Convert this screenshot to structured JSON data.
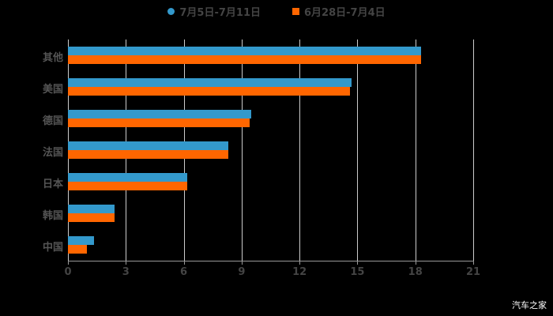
{
  "chart_data": {
    "type": "bar",
    "orientation": "horizontal",
    "title": "",
    "categories": [
      "其他",
      "美国",
      "德国",
      "法国",
      "日本",
      "韩国",
      "中国"
    ],
    "series": [
      {
        "name": "7月5日-7月11日",
        "color": "#3399CC",
        "marker": "circle",
        "values": [
          18.3,
          14.7,
          9.5,
          8.3,
          6.2,
          2.4,
          1.35
        ]
      },
      {
        "name": "6月28日-7月4日",
        "color": "#FF6600",
        "marker": "square",
        "values": [
          18.3,
          14.6,
          9.4,
          8.3,
          6.2,
          2.4,
          1.0
        ]
      }
    ],
    "xlabel": "",
    "ylabel": "",
    "xlim": [
      0,
      21
    ],
    "xticks": [
      0,
      3,
      6,
      9,
      12,
      15,
      18,
      21
    ],
    "grid": true,
    "legend_position": "top"
  },
  "legend": {
    "series1": "7月5日-7月11日",
    "series2": "6月28日-7月4日"
  },
  "watermark": "汽车之家"
}
